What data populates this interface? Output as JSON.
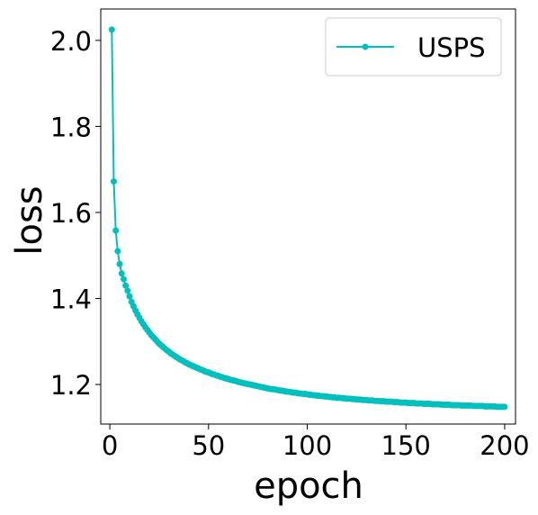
{
  "chart_data": {
    "type": "line",
    "xlabel": "epoch",
    "ylabel": "loss",
    "x": [
      1,
      2,
      3,
      4,
      5,
      6,
      7,
      8,
      9,
      10,
      11,
      12,
      13,
      14,
      15,
      16,
      17,
      18,
      19,
      20,
      21,
      22,
      23,
      24,
      25,
      26,
      27,
      28,
      29,
      30,
      31,
      32,
      33,
      34,
      35,
      36,
      37,
      38,
      39,
      40,
      41,
      42,
      43,
      44,
      45,
      46,
      47,
      48,
      49,
      50,
      51,
      52,
      53,
      54,
      55,
      56,
      57,
      58,
      59,
      60,
      61,
      62,
      63,
      64,
      65,
      66,
      67,
      68,
      69,
      70,
      71,
      72,
      73,
      74,
      75,
      76,
      77,
      78,
      79,
      80,
      81,
      82,
      83,
      84,
      85,
      86,
      87,
      88,
      89,
      90,
      91,
      92,
      93,
      94,
      95,
      96,
      97,
      98,
      99,
      100,
      101,
      102,
      103,
      104,
      105,
      106,
      107,
      108,
      109,
      110,
      111,
      112,
      113,
      114,
      115,
      116,
      117,
      118,
      119,
      120,
      121,
      122,
      123,
      124,
      125,
      126,
      127,
      128,
      129,
      130,
      131,
      132,
      133,
      134,
      135,
      136,
      137,
      138,
      139,
      140,
      141,
      142,
      143,
      144,
      145,
      146,
      147,
      148,
      149,
      150,
      151,
      152,
      153,
      154,
      155,
      156,
      157,
      158,
      159,
      160,
      161,
      162,
      163,
      164,
      165,
      166,
      167,
      168,
      169,
      170,
      171,
      172,
      173,
      174,
      175,
      176,
      177,
      178,
      179,
      180,
      181,
      182,
      183,
      184,
      185,
      186,
      187,
      188,
      189,
      190,
      191,
      192,
      193,
      194,
      195,
      196,
      197,
      198,
      199,
      200
    ],
    "series": [
      {
        "name": "USPS",
        "color": "#00bfbf",
        "values": [
          2.025,
          1.672,
          1.558,
          1.51,
          1.48,
          1.458,
          1.445,
          1.43,
          1.418,
          1.405,
          1.392,
          1.382,
          1.372,
          1.363,
          1.355,
          1.347,
          1.34,
          1.333,
          1.327,
          1.321,
          1.315,
          1.31,
          1.305,
          1.3,
          1.295,
          1.291,
          1.287,
          1.283,
          1.279,
          1.276,
          1.272,
          1.269,
          1.266,
          1.263,
          1.26,
          1.257,
          1.255,
          1.252,
          1.25,
          1.247,
          1.245,
          1.243,
          1.241,
          1.239,
          1.237,
          1.235,
          1.233,
          1.231,
          1.229,
          1.228,
          1.226,
          1.224,
          1.223,
          1.221,
          1.22,
          1.218,
          1.217,
          1.215,
          1.214,
          1.213,
          1.211,
          1.21,
          1.209,
          1.208,
          1.206,
          1.205,
          1.204,
          1.203,
          1.202,
          1.201,
          1.2,
          1.199,
          1.198,
          1.197,
          1.196,
          1.195,
          1.194,
          1.193,
          1.192,
          1.191,
          1.19,
          1.189,
          1.189,
          1.188,
          1.187,
          1.186,
          1.186,
          1.185,
          1.184,
          1.183,
          1.183,
          1.182,
          1.181,
          1.181,
          1.18,
          1.179,
          1.179,
          1.178,
          1.178,
          1.177,
          1.176,
          1.176,
          1.175,
          1.175,
          1.174,
          1.174,
          1.173,
          1.173,
          1.172,
          1.172,
          1.171,
          1.171,
          1.17,
          1.17,
          1.169,
          1.169,
          1.169,
          1.168,
          1.168,
          1.167,
          1.167,
          1.167,
          1.166,
          1.166,
          1.165,
          1.165,
          1.165,
          1.164,
          1.164,
          1.164,
          1.163,
          1.163,
          1.163,
          1.162,
          1.162,
          1.162,
          1.161,
          1.161,
          1.161,
          1.16,
          1.16,
          1.16,
          1.16,
          1.159,
          1.159,
          1.159,
          1.158,
          1.158,
          1.158,
          1.158,
          1.157,
          1.157,
          1.157,
          1.157,
          1.156,
          1.156,
          1.156,
          1.156,
          1.155,
          1.155,
          1.155,
          1.155,
          1.154,
          1.154,
          1.154,
          1.154,
          1.154,
          1.153,
          1.153,
          1.153,
          1.153,
          1.153,
          1.152,
          1.152,
          1.152,
          1.152,
          1.152,
          1.151,
          1.151,
          1.151,
          1.151,
          1.151,
          1.151,
          1.15,
          1.15,
          1.15,
          1.15,
          1.15,
          1.15,
          1.149,
          1.149,
          1.149,
          1.149,
          1.149,
          1.149,
          1.148,
          1.148,
          1.148,
          1.148,
          1.148
        ]
      }
    ],
    "xlim": [
      -4.6,
      205.5
    ],
    "xticks": [
      0,
      50,
      100,
      150,
      200
    ],
    "ylim": [
      1.108,
      2.073
    ],
    "yticks": [
      1.2,
      1.4,
      1.6,
      1.8,
      {
        "value": 2.0,
        "label": "2.0"
      }
    ],
    "grid": false,
    "legend": "upper right",
    "markers": true
  }
}
